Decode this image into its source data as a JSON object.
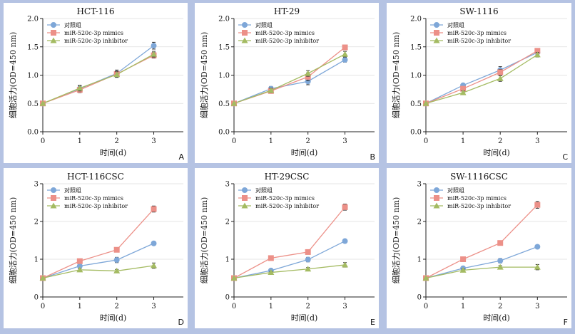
{
  "colors": {
    "frame": "#b5c3e3",
    "panel": "#ffffff",
    "series": [
      "#7ea7d8",
      "#ec9088",
      "#a4bb62"
    ]
  },
  "chart_data": [
    {
      "type": "line",
      "panel_letter": "A",
      "title": "HCT-116",
      "xlabel": "时间(d)",
      "ylabel": "细胞活力(OD=450 nm)",
      "ylim": [
        0,
        2
      ],
      "yticks": [
        "0.0",
        "0.5",
        "1.0",
        "1.5",
        "2.0"
      ],
      "yticks_values": [
        0,
        0.5,
        1,
        1.5,
        2
      ],
      "x": [
        0,
        1,
        2,
        3
      ],
      "xticks": [
        "0",
        "1",
        "2",
        "3"
      ],
      "legend_position": "top-left",
      "series": [
        {
          "name": "对照组",
          "marker": "circle",
          "values": [
            0.5,
            0.76,
            1.03,
            1.52
          ],
          "errors": [
            0,
            0.05,
            0.06,
            0.06
          ]
        },
        {
          "name": "miR-520c-3p mimics",
          "marker": "square",
          "values": [
            0.5,
            0.74,
            1.02,
            1.35
          ],
          "errors": [
            0,
            0.05,
            0.05,
            0.05
          ]
        },
        {
          "name": "miR-520c-3p inhibitor",
          "marker": "triangle",
          "values": [
            0.5,
            0.77,
            1.01,
            1.37
          ],
          "errors": [
            0,
            0.05,
            0.05,
            0.05
          ]
        }
      ]
    },
    {
      "type": "line",
      "panel_letter": "B",
      "title": "HT-29",
      "xlabel": "时间(d)",
      "ylabel": "细胞活力(OD=450 nm)",
      "ylim": [
        0,
        2
      ],
      "yticks": [
        "0.0",
        "0.5",
        "1.0",
        "1.5",
        "2.0"
      ],
      "yticks_values": [
        0,
        0.5,
        1,
        1.5,
        2
      ],
      "x": [
        0,
        1,
        2,
        3
      ],
      "xticks": [
        "0",
        "1",
        "2",
        "3"
      ],
      "legend_position": "top-left",
      "series": [
        {
          "name": "对照组",
          "marker": "circle",
          "values": [
            0.5,
            0.76,
            0.89,
            1.27
          ],
          "errors": [
            0,
            0.04,
            0.06,
            0.04
          ]
        },
        {
          "name": "miR-520c-3p mimics",
          "marker": "square",
          "values": [
            0.5,
            0.72,
            0.97,
            1.49
          ],
          "errors": [
            0,
            0.04,
            0.07,
            0.04
          ]
        },
        {
          "name": "miR-520c-3p inhibitor",
          "marker": "triangle",
          "values": [
            0.5,
            0.73,
            1.03,
            1.37
          ],
          "errors": [
            0,
            0.04,
            0.05,
            0.05
          ]
        }
      ]
    },
    {
      "type": "line",
      "panel_letter": "C",
      "title": "SW-1116",
      "xlabel": "时间(d)",
      "ylabel": "细胞活力(OD=450 nm)",
      "ylim": [
        0,
        2
      ],
      "yticks": [
        "0.0",
        "0.5",
        "1.0",
        "1.5",
        "2.0"
      ],
      "yticks_values": [
        0,
        0.5,
        1,
        1.5,
        2
      ],
      "x": [
        0,
        1,
        2,
        3
      ],
      "xticks": [
        "0",
        "1",
        "2",
        "3"
      ],
      "legend_position": "top-left",
      "series": [
        {
          "name": "对照组",
          "marker": "circle",
          "values": [
            0.5,
            0.82,
            1.09,
            1.4
          ],
          "errors": [
            0,
            0.03,
            0.06,
            0.04
          ]
        },
        {
          "name": "miR-520c-3p mimics",
          "marker": "square",
          "values": [
            0.5,
            0.76,
            1.05,
            1.43
          ],
          "errors": [
            0,
            0.03,
            0.05,
            0.03
          ]
        },
        {
          "name": "miR-520c-3p inhibitor",
          "marker": "triangle",
          "values": [
            0.5,
            0.69,
            0.94,
            1.36
          ],
          "errors": [
            0,
            0.03,
            0.05,
            0.04
          ]
        }
      ]
    },
    {
      "type": "line",
      "panel_letter": "D",
      "title": "HCT-116CSC",
      "xlabel": "时间(d)",
      "ylabel": "细胞活力(OD=450 nm)",
      "ylim": [
        0,
        3
      ],
      "yticks": [
        "0",
        "1",
        "2",
        "3"
      ],
      "yticks_values": [
        0,
        1,
        2,
        3
      ],
      "x": [
        0,
        1,
        2,
        3
      ],
      "xticks": [
        "0",
        "1",
        "2",
        "3"
      ],
      "legend_position": "top-left",
      "series": [
        {
          "name": "对照组",
          "marker": "circle",
          "values": [
            0.5,
            0.82,
            0.98,
            1.42
          ],
          "errors": [
            0,
            0.04,
            0.07,
            0.04
          ]
        },
        {
          "name": "miR-520c-3p mimics",
          "marker": "square",
          "values": [
            0.5,
            0.95,
            1.25,
            2.33
          ],
          "errors": [
            0,
            0.04,
            0.04,
            0.08
          ]
        },
        {
          "name": "miR-520c-3p inhibitor",
          "marker": "triangle",
          "values": [
            0.5,
            0.72,
            0.69,
            0.83
          ],
          "errors": [
            0,
            0.03,
            0.04,
            0.07
          ]
        }
      ]
    },
    {
      "type": "line",
      "panel_letter": "E",
      "title": "HT-29CSC",
      "xlabel": "时间(d)",
      "ylabel": "细胞活力(OD=450 nm)",
      "ylim": [
        0,
        3
      ],
      "yticks": [
        "0",
        "1",
        "2",
        "3"
      ],
      "yticks_values": [
        0,
        1,
        2,
        3
      ],
      "x": [
        0,
        1,
        2,
        3
      ],
      "xticks": [
        "0",
        "1",
        "2",
        "3"
      ],
      "legend_position": "top-left",
      "series": [
        {
          "name": "对照组",
          "marker": "circle",
          "values": [
            0.5,
            0.7,
            0.99,
            1.48
          ],
          "errors": [
            0,
            0.04,
            0.06,
            0.04
          ]
        },
        {
          "name": "miR-520c-3p mimics",
          "marker": "square",
          "values": [
            0.5,
            1.03,
            1.19,
            2.38
          ],
          "errors": [
            0,
            0.04,
            0.05,
            0.08
          ]
        },
        {
          "name": "miR-520c-3p inhibitor",
          "marker": "triangle",
          "values": [
            0.5,
            0.65,
            0.74,
            0.85
          ],
          "errors": [
            0,
            0.03,
            0.04,
            0.06
          ]
        }
      ]
    },
    {
      "type": "line",
      "panel_letter": "F",
      "title": "SW-1116CSC",
      "xlabel": "时间(d)",
      "ylabel": "细胞活力(OD=450 nm)",
      "ylim": [
        0,
        3
      ],
      "yticks": [
        "0",
        "1",
        "2",
        "3"
      ],
      "yticks_values": [
        0,
        1,
        2,
        3
      ],
      "x": [
        0,
        1,
        2,
        3
      ],
      "xticks": [
        "0",
        "1",
        "2",
        "3"
      ],
      "legend_position": "top-left",
      "series": [
        {
          "name": "对照组",
          "marker": "circle",
          "values": [
            0.5,
            0.76,
            0.96,
            1.33
          ],
          "errors": [
            0,
            0.03,
            0.06,
            0.04
          ]
        },
        {
          "name": "miR-520c-3p mimics",
          "marker": "square",
          "values": [
            0.5,
            1.0,
            1.43,
            2.44
          ],
          "errors": [
            0,
            0.04,
            0.04,
            0.09
          ]
        },
        {
          "name": "miR-520c-3p inhibitor",
          "marker": "triangle",
          "values": [
            0.5,
            0.71,
            0.79,
            0.79
          ],
          "errors": [
            0,
            0.03,
            0.04,
            0.07
          ]
        }
      ]
    }
  ]
}
